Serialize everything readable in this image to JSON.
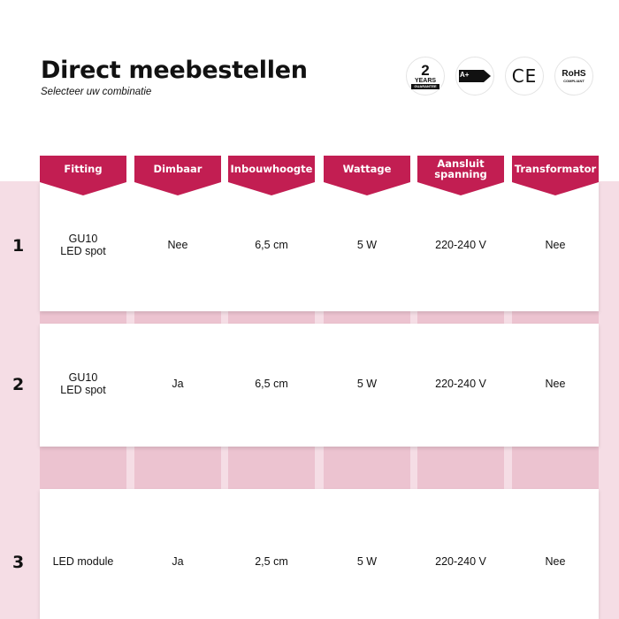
{
  "header": {
    "title": "Direct meebestellen",
    "subtitle": "Selecteer uw combinatie"
  },
  "badges": [
    {
      "icon": "2-years-guarantee-icon",
      "big": "2",
      "mid": "YEARS",
      "small": "GUARANTEE"
    },
    {
      "icon": "energy-label-icon",
      "text": "A+"
    },
    {
      "icon": "ce-mark-icon",
      "text": "CE"
    },
    {
      "icon": "rohs-icon",
      "text": "RoHS",
      "small": "COMPLIANT"
    }
  ],
  "colors": {
    "accent": "#c21e52",
    "background_pink": "#f5dde5",
    "strip_pink": "#ecc3d0"
  },
  "columns": [
    "Fitting",
    "Dimbaar",
    "Inbouwhoogte",
    "Wattage",
    "Aansluit\nspanning",
    "Transformator"
  ],
  "rows": [
    {
      "number": "1",
      "cells": [
        "GU10\nLED spot",
        "Nee",
        "6,5 cm",
        "5 W",
        "220-240 V",
        "Nee"
      ]
    },
    {
      "number": "2",
      "cells": [
        "GU10\nLED spot",
        "Ja",
        "6,5 cm",
        "5 W",
        "220-240 V",
        "Nee"
      ]
    },
    {
      "number": "3",
      "cells": [
        "LED module",
        "Ja",
        "2,5 cm",
        "5 W",
        "220-240 V",
        "Nee"
      ]
    }
  ]
}
